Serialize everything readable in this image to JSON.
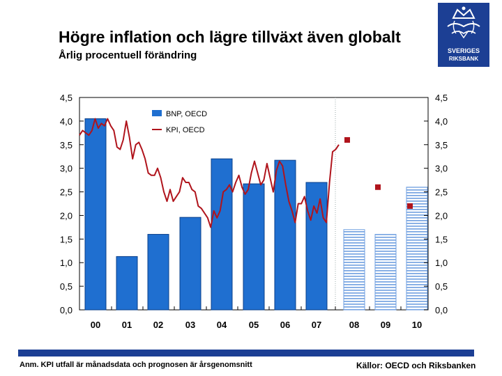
{
  "header": {
    "title": "Högre inflation och lägre tillväxt även globalt",
    "subtitle": "Årlig procentuell förändring"
  },
  "logo": {
    "text_line1": "SVERIGES",
    "text_line2": "RIKSBANK"
  },
  "footer": {
    "note": "Anm. KPI utfall är månadsdata och prognosen är årsgenomsnitt",
    "source": "Källor: OECD och Riksbanken"
  },
  "colors": {
    "bar_blue": "#1f6fd0",
    "line_red": "#b0141c",
    "brand_navy": "#1c3f94"
  },
  "chart_data": {
    "type": "bar",
    "title": "Högre inflation och lägre tillväxt även globalt",
    "subtitle": "Årlig procentuell förändring",
    "categories": [
      "00",
      "01",
      "02",
      "03",
      "04",
      "05",
      "06",
      "07",
      "08",
      "09",
      "10"
    ],
    "ylim": [
      0,
      4.5
    ],
    "yticks": [
      "0,0",
      "0,5",
      "1,0",
      "1,5",
      "2,0",
      "2,5",
      "3,0",
      "3,5",
      "4,0",
      "4,5"
    ],
    "legend": [
      "BNP, OECD",
      "KPI, OECD"
    ],
    "series": [
      {
        "name": "BNP, OECD",
        "kind": "bar",
        "values": [
          4.05,
          1.13,
          1.6,
          1.96,
          3.2,
          2.67,
          3.17,
          2.7,
          1.7,
          1.6,
          2.6
        ],
        "forecast_from_index": 8
      },
      {
        "name": "KPI, OECD",
        "kind": "line",
        "monthly_values": [
          3.7,
          3.8,
          3.75,
          3.7,
          3.8,
          4.05,
          3.85,
          3.95,
          3.9,
          4.05,
          3.9,
          3.8,
          3.45,
          3.4,
          3.6,
          4.0,
          3.65,
          3.2,
          3.5,
          3.55,
          3.4,
          3.2,
          2.9,
          2.85,
          2.85,
          3.0,
          2.8,
          2.5,
          2.3,
          2.55,
          2.3,
          2.4,
          2.5,
          2.8,
          2.7,
          2.7,
          2.55,
          2.5,
          2.2,
          2.15,
          2.05,
          1.95,
          1.75,
          2.1,
          1.95,
          2.1,
          2.5,
          2.55,
          2.65,
          2.5,
          2.7,
          2.85,
          2.6,
          2.45,
          2.55,
          2.9,
          3.15,
          2.9,
          2.65,
          2.75,
          3.1,
          2.8,
          2.5,
          2.95,
          3.15,
          3.05,
          2.65,
          2.3,
          2.1,
          1.85,
          2.25,
          2.25,
          2.4,
          2.1,
          1.9,
          2.2,
          2.05,
          2.35,
          1.95,
          1.85,
          2.7,
          3.35,
          3.4,
          3.5
        ],
        "forecast": {
          "08": 3.6,
          "09": 2.6,
          "10": 2.2
        }
      }
    ]
  }
}
